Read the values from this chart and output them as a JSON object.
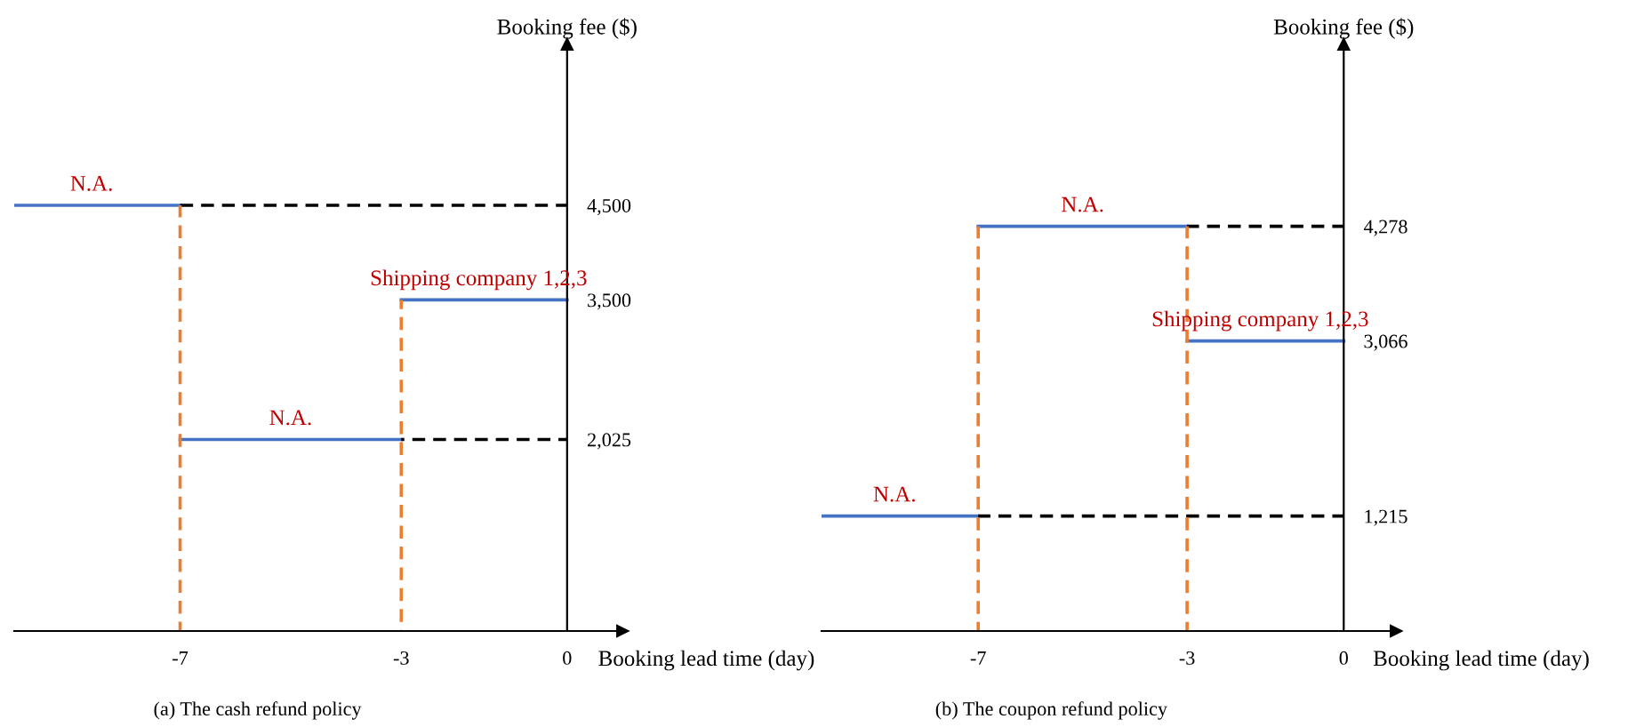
{
  "chart_data": [
    {
      "type": "line",
      "xlabel": "Booking lead time (day)",
      "ylabel": "Booking fee ($)",
      "xlim": [
        -10,
        1
      ],
      "ylim": [
        0,
        6200
      ],
      "xticks": [
        -7,
        -3,
        0
      ],
      "yticks": [
        {
          "value": 2025,
          "label": "2,025"
        },
        {
          "value": 3500,
          "label": "3,500"
        },
        {
          "value": 4500,
          "label": "4,500"
        }
      ],
      "grid": false,
      "marker": "none",
      "series": [
        {
          "color": "#4472c4",
          "line_style": "solid",
          "x": [
            -10,
            -7
          ],
          "values": [
            4500,
            4500
          ]
        },
        {
          "color": "#4472c4",
          "line_style": "solid",
          "x": [
            -7,
            -3
          ],
          "values": [
            2025,
            2025
          ]
        },
        {
          "color": "#4472c4",
          "line_style": "solid",
          "x": [
            -3,
            0
          ],
          "values": [
            3500,
            3500
          ]
        },
        {
          "color": "#000000",
          "line_style": "dashed",
          "x": [
            -7,
            0
          ],
          "values": [
            4500,
            4500
          ]
        },
        {
          "color": "#000000",
          "line_style": "dashed",
          "x": [
            -3,
            0
          ],
          "values": [
            2025,
            2025
          ]
        },
        {
          "color": "#ed7d31",
          "line_style": "dashed",
          "x": [
            -7,
            -7
          ],
          "values": [
            0,
            4500
          ]
        },
        {
          "color": "#ed7d31",
          "line_style": "dashed",
          "x": [
            -3,
            -3
          ],
          "values": [
            0,
            3500
          ]
        }
      ],
      "annotations": [
        {
          "text": "N.A.",
          "x": -8.6,
          "y": 4500
        },
        {
          "text": "Shipping company 1,2,3",
          "x": -1.6,
          "y": 3500
        },
        {
          "text": "N.A.",
          "x": -5,
          "y": 2025
        },
        "(a) The cash refund policy"
      ]
    },
    {
      "type": "line",
      "xlabel": "Booking lead time (day)",
      "ylabel": "Booking fee ($)",
      "xlim": [
        -10,
        1
      ],
      "ylim": [
        0,
        6200
      ],
      "xticks": [
        -7,
        -3,
        0
      ],
      "yticks": [
        {
          "value": 1215,
          "label": "1,215"
        },
        {
          "value": 3066,
          "label": "3,066"
        },
        {
          "value": 4278,
          "label": "4,278"
        }
      ],
      "grid": false,
      "marker": "none",
      "series": [
        {
          "color": "#4472c4",
          "line_style": "solid",
          "x": [
            -10,
            -7
          ],
          "values": [
            1215,
            1215
          ]
        },
        {
          "color": "#4472c4",
          "line_style": "solid",
          "x": [
            -7,
            -3
          ],
          "values": [
            4278,
            4278
          ]
        },
        {
          "color": "#4472c4",
          "line_style": "solid",
          "x": [
            -3,
            0
          ],
          "values": [
            3066,
            3066
          ]
        },
        {
          "color": "#000000",
          "line_style": "dashed",
          "x": [
            -7,
            0
          ],
          "values": [
            1215,
            1215
          ]
        },
        {
          "color": "#000000",
          "line_style": "dashed",
          "x": [
            -3,
            0
          ],
          "values": [
            4278,
            4278
          ]
        },
        {
          "color": "#ed7d31",
          "line_style": "dashed",
          "x": [
            -7,
            -7
          ],
          "values": [
            0,
            4278
          ]
        },
        {
          "color": "#ed7d31",
          "line_style": "dashed",
          "x": [
            -3,
            -3
          ],
          "values": [
            0,
            4278
          ]
        }
      ],
      "annotations": [
        {
          "text": "N.A.",
          "x": -8.6,
          "y": 1215
        },
        {
          "text": "N.A.",
          "x": -5,
          "y": 4278
        },
        {
          "text": "Shipping company 1,2,3",
          "x": -1.6,
          "y": 3066
        },
        "(b) The coupon refund policy"
      ]
    }
  ]
}
